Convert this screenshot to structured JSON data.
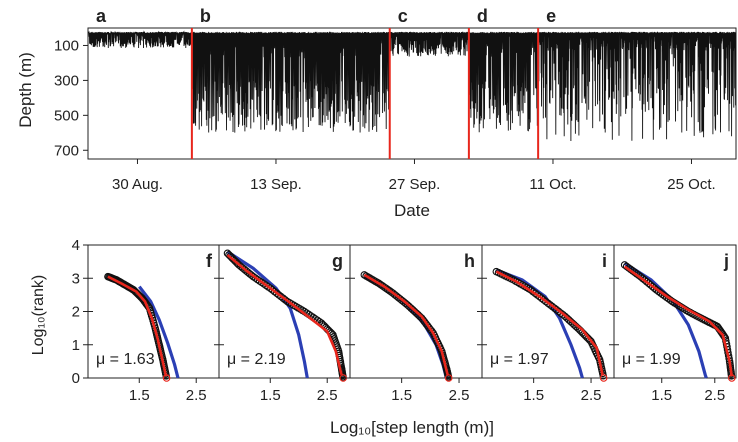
{
  "chart_data": [
    {
      "type": "line",
      "panel": "top",
      "xlabel": "Date",
      "ylabel": "Depth (m)",
      "y_inverted": true,
      "ylim": [
        750,
        0
      ],
      "yticks": [
        100,
        300,
        500,
        700
      ],
      "x_tick_labels": [
        "30 Aug.",
        "13 Sep.",
        "27 Sep.",
        "11 Oct.",
        "25 Oct."
      ],
      "x_ticks_day": [
        5,
        19,
        33,
        47,
        61
      ],
      "xlim_day": [
        0,
        65.5
      ],
      "segment_letters": [
        "a",
        "b",
        "c",
        "d",
        "e"
      ],
      "segment_start_day": [
        0,
        10.5,
        30.5,
        38.5,
        45.5
      ],
      "segment_colors": [
        "#000000",
        "#000000",
        "#000000",
        "#000000",
        "#000000"
      ],
      "segment_boundaries_day": [
        10.5,
        30.5,
        38.5,
        45.5
      ],
      "boundary_color": "#e8261c",
      "segments": [
        {
          "letter": "a",
          "day_range": [
            0,
            10.5
          ],
          "typical_max_depth_m": 100,
          "surface_band_m": [
            20,
            110
          ]
        },
        {
          "letter": "b",
          "day_range": [
            10.5,
            30.5
          ],
          "typical_max_depth_m": 550,
          "surface_band_m": [
            20,
            600
          ]
        },
        {
          "letter": "c",
          "day_range": [
            30.5,
            38.5
          ],
          "typical_max_depth_m": 150,
          "surface_band_m": [
            20,
            160
          ]
        },
        {
          "letter": "d",
          "day_range": [
            38.5,
            45.5
          ],
          "typical_max_depth_m": 550,
          "surface_band_m": [
            20,
            600
          ]
        },
        {
          "letter": "e",
          "day_range": [
            45.5,
            65.5
          ],
          "typical_max_depth_m": 350,
          "surface_band_m": [
            20,
            650
          ]
        }
      ]
    },
    {
      "type": "scatter",
      "panel": "bottom",
      "xlabel": "Log₁₀[step length (m)]",
      "ylabel": "Log₁₀(rank)",
      "ylim": [
        0,
        4
      ],
      "yticks": [
        0,
        1,
        2,
        3,
        4
      ],
      "xticks": [
        1.5,
        2.5
      ],
      "xlim": [
        0.6,
        2.9
      ],
      "subplots": [
        {
          "letter": "f",
          "mu_label": "μ = 1.63",
          "data": [
            [
              0.95,
              3.05
            ],
            [
              1.1,
              2.95
            ],
            [
              1.25,
              2.8
            ],
            [
              1.4,
              2.65
            ],
            [
              1.55,
              2.4
            ],
            [
              1.68,
              2.1
            ],
            [
              1.78,
              1.5
            ],
            [
              1.85,
              1.0
            ],
            [
              1.92,
              0.5
            ],
            [
              1.98,
              0.0
            ]
          ],
          "fit": [
            [
              0.95,
              3.05
            ],
            [
              1.2,
              2.83
            ],
            [
              1.45,
              2.6
            ],
            [
              1.6,
              2.3
            ],
            [
              1.72,
              1.8
            ],
            [
              1.82,
              1.2
            ],
            [
              1.9,
              0.6
            ],
            [
              1.97,
              0.05
            ]
          ],
          "exp": [
            [
              1.5,
              2.75
            ],
            [
              1.7,
              2.3
            ],
            [
              1.85,
              1.75
            ],
            [
              2.0,
              1.05
            ],
            [
              2.12,
              0.4
            ],
            [
              2.18,
              0.0
            ]
          ]
        },
        {
          "letter": "g",
          "mu_label": "μ = 2.19",
          "data": [
            [
              0.75,
              3.75
            ],
            [
              0.95,
              3.4
            ],
            [
              1.2,
              3.05
            ],
            [
              1.5,
              2.7
            ],
            [
              1.8,
              2.3
            ],
            [
              2.1,
              2.0
            ],
            [
              2.4,
              1.65
            ],
            [
              2.6,
              1.3
            ],
            [
              2.7,
              0.8
            ],
            [
              2.75,
              0.3
            ],
            [
              2.78,
              0.0
            ]
          ],
          "fit": [
            [
              0.75,
              3.7
            ],
            [
              1.1,
              3.2
            ],
            [
              1.5,
              2.7
            ],
            [
              1.9,
              2.2
            ],
            [
              2.2,
              1.8
            ],
            [
              2.5,
              1.4
            ],
            [
              2.65,
              0.8
            ],
            [
              2.75,
              0.1
            ]
          ],
          "exp": [
            [
              0.75,
              3.8
            ],
            [
              1.2,
              3.3
            ],
            [
              1.6,
              2.7
            ],
            [
              1.85,
              2.1
            ],
            [
              2.0,
              1.3
            ],
            [
              2.1,
              0.5
            ],
            [
              2.15,
              0.0
            ]
          ]
        },
        {
          "letter": "h",
          "mu_label": "",
          "data": [
            [
              0.85,
              3.1
            ],
            [
              1.1,
              2.85
            ],
            [
              1.35,
              2.55
            ],
            [
              1.6,
              2.2
            ],
            [
              1.85,
              1.8
            ],
            [
              2.05,
              1.35
            ],
            [
              2.2,
              0.8
            ],
            [
              2.28,
              0.3
            ],
            [
              2.32,
              0.0
            ]
          ],
          "fit": [
            [
              0.85,
              3.1
            ],
            [
              1.2,
              2.75
            ],
            [
              1.55,
              2.3
            ],
            [
              1.85,
              1.85
            ],
            [
              2.05,
              1.35
            ],
            [
              2.2,
              0.8
            ],
            [
              2.3,
              0.1
            ]
          ],
          "exp": [
            [
              0.85,
              3.05
            ],
            [
              1.25,
              2.7
            ],
            [
              1.6,
              2.2
            ],
            [
              1.9,
              1.6
            ],
            [
              2.1,
              1.0
            ],
            [
              2.22,
              0.4
            ],
            [
              2.28,
              0.0
            ]
          ]
        },
        {
          "letter": "i",
          "mu_label": "μ = 1.97",
          "data": [
            [
              0.85,
              3.2
            ],
            [
              1.15,
              2.95
            ],
            [
              1.45,
              2.65
            ],
            [
              1.75,
              2.25
            ],
            [
              2.05,
              1.85
            ],
            [
              2.3,
              1.45
            ],
            [
              2.5,
              1.1
            ],
            [
              2.65,
              0.55
            ],
            [
              2.72,
              0.0
            ]
          ],
          "fit": [
            [
              0.85,
              3.2
            ],
            [
              1.2,
              2.9
            ],
            [
              1.6,
              2.45
            ],
            [
              2.0,
              1.95
            ],
            [
              2.35,
              1.45
            ],
            [
              2.6,
              0.9
            ],
            [
              2.7,
              0.1
            ]
          ],
          "exp": [
            [
              0.85,
              3.25
            ],
            [
              1.3,
              2.95
            ],
            [
              1.7,
              2.45
            ],
            [
              1.95,
              1.8
            ],
            [
              2.15,
              1.0
            ],
            [
              2.3,
              0.3
            ],
            [
              2.35,
              0.0
            ]
          ]
        },
        {
          "letter": "j",
          "mu_label": "μ = 1.99",
          "data": [
            [
              0.8,
              3.4
            ],
            [
              1.1,
              3.05
            ],
            [
              1.4,
              2.65
            ],
            [
              1.7,
              2.3
            ],
            [
              2.0,
              2.0
            ],
            [
              2.3,
              1.75
            ],
            [
              2.55,
              1.55
            ],
            [
              2.7,
              1.2
            ],
            [
              2.78,
              0.5
            ],
            [
              2.82,
              0.0
            ]
          ],
          "fit": [
            [
              0.8,
              3.35
            ],
            [
              1.2,
              2.9
            ],
            [
              1.6,
              2.45
            ],
            [
              2.0,
              2.05
            ],
            [
              2.4,
              1.7
            ],
            [
              2.65,
              1.3
            ],
            [
              2.78,
              0.5
            ],
            [
              2.82,
              0.05
            ]
          ],
          "exp": [
            [
              0.8,
              3.45
            ],
            [
              1.3,
              2.95
            ],
            [
              1.7,
              2.35
            ],
            [
              2.0,
              1.6
            ],
            [
              2.2,
              0.8
            ],
            [
              2.32,
              0.1
            ],
            [
              2.34,
              0.0
            ]
          ]
        }
      ],
      "series_colors": {
        "data": "#111111",
        "fit": "#e8261c",
        "exp": "#2b3fb4"
      }
    }
  ]
}
